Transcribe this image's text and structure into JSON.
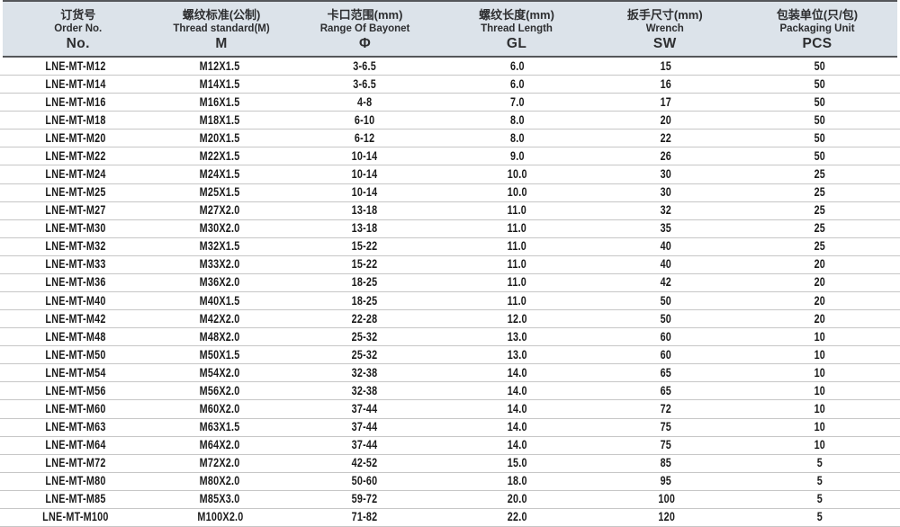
{
  "table": {
    "columns": [
      {
        "zh": "订货号",
        "en": "Order No.",
        "sym": "No."
      },
      {
        "zh": "螺纹标准(公制)",
        "en": "Thread standard(M)",
        "sym": "M"
      },
      {
        "zh": "卡口范围(mm)",
        "en": "Range Of Bayonet",
        "sym": "Φ"
      },
      {
        "zh": "螺纹长度(mm)",
        "en": "Thread Length",
        "sym": "GL"
      },
      {
        "zh": "扳手尺寸(mm)",
        "en": "Wrench",
        "sym": "SW"
      },
      {
        "zh": "包装单位(只/包)",
        "en": "Packaging Unit",
        "sym": "PCS"
      }
    ],
    "rows": [
      [
        "LNE-MT-M12",
        "M12X1.5",
        "3-6.5",
        "6.0",
        "15",
        "50"
      ],
      [
        "LNE-MT-M14",
        "M14X1.5",
        "3-6.5",
        "6.0",
        "16",
        "50"
      ],
      [
        "LNE-MT-M16",
        "M16X1.5",
        "4-8",
        "7.0",
        "17",
        "50"
      ],
      [
        "LNE-MT-M18",
        "M18X1.5",
        "6-10",
        "8.0",
        "20",
        "50"
      ],
      [
        "LNE-MT-M20",
        "M20X1.5",
        "6-12",
        "8.0",
        "22",
        "50"
      ],
      [
        "LNE-MT-M22",
        "M22X1.5",
        "10-14",
        "9.0",
        "26",
        "50"
      ],
      [
        "LNE-MT-M24",
        "M24X1.5",
        "10-14",
        "10.0",
        "30",
        "25"
      ],
      [
        "LNE-MT-M25",
        "M25X1.5",
        "10-14",
        "10.0",
        "30",
        "25"
      ],
      [
        "LNE-MT-M27",
        "M27X2.0",
        "13-18",
        "11.0",
        "32",
        "25"
      ],
      [
        "LNE-MT-M30",
        "M30X2.0",
        "13-18",
        "11.0",
        "35",
        "25"
      ],
      [
        "LNE-MT-M32",
        "M32X1.5",
        "15-22",
        "11.0",
        "40",
        "25"
      ],
      [
        "LNE-MT-M33",
        "M33X2.0",
        "15-22",
        "11.0",
        "40",
        "20"
      ],
      [
        "LNE-MT-M36",
        "M36X2.0",
        "18-25",
        "11.0",
        "42",
        "20"
      ],
      [
        "LNE-MT-M40",
        "M40X1.5",
        "18-25",
        "11.0",
        "50",
        "20"
      ],
      [
        "LNE-MT-M42",
        "M42X2.0",
        "22-28",
        "12.0",
        "50",
        "20"
      ],
      [
        "LNE-MT-M48",
        "M48X2.0",
        "25-32",
        "13.0",
        "60",
        "10"
      ],
      [
        "LNE-MT-M50",
        "M50X1.5",
        "25-32",
        "13.0",
        "60",
        "10"
      ],
      [
        "LNE-MT-M54",
        "M54X2.0",
        "32-38",
        "14.0",
        "65",
        "10"
      ],
      [
        "LNE-MT-M56",
        "M56X2.0",
        "32-38",
        "14.0",
        "65",
        "10"
      ],
      [
        "LNE-MT-M60",
        "M60X2.0",
        "37-44",
        "14.0",
        "72",
        "10"
      ],
      [
        "LNE-MT-M63",
        "M63X1.5",
        "37-44",
        "14.0",
        "75",
        "10"
      ],
      [
        "LNE-MT-M64",
        "M64X2.0",
        "37-44",
        "14.0",
        "75",
        "10"
      ],
      [
        "LNE-MT-M72",
        "M72X2.0",
        "42-52",
        "15.0",
        "85",
        "5"
      ],
      [
        "LNE-MT-M80",
        "M80X2.0",
        "50-60",
        "18.0",
        "95",
        "5"
      ],
      [
        "LNE-MT-M85",
        "M85X3.0",
        "59-72",
        "20.0",
        "100",
        "5"
      ],
      [
        "LNE-MT-M100",
        "M100X2.0",
        "71-82",
        "22.0",
        "120",
        "5"
      ]
    ]
  },
  "colors": {
    "header_bg": "#dce3ea",
    "header_border": "#54565a",
    "row_separator": "#c6c6c6",
    "text": "#1b1b1b"
  }
}
